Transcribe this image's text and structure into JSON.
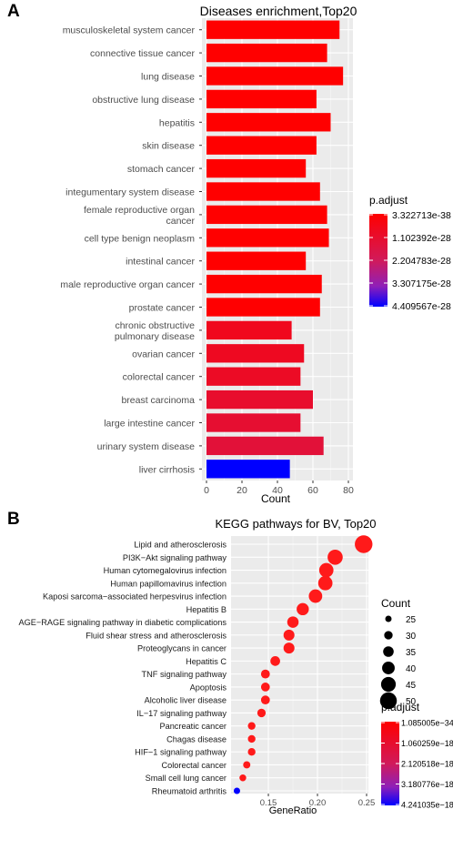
{
  "panels": {
    "a": {
      "letter": "A"
    },
    "b": {
      "letter": "B"
    }
  },
  "colors": {
    "high": "#ff0000",
    "low": "#0000ff",
    "panel": "#ebebeb",
    "grid": "#ffffff"
  },
  "chart_data": [
    {
      "type": "bar",
      "orientation": "horizontal",
      "title": "Diseases enrichment,Top20",
      "xlabel": "Count",
      "ylabel": "",
      "xlim": [
        0,
        80
      ],
      "xticks": [
        0,
        20,
        40,
        60,
        80
      ],
      "grid": true,
      "categories": [
        "musculoskeletal system cancer",
        "connective tissue cancer",
        "lung disease",
        "obstructive lung disease",
        "hepatitis",
        "skin disease",
        "stomach cancer",
        "integumentary system disease",
        "female reproductive organ cancer",
        "cell type benign neoplasm",
        "intestinal cancer",
        "male reproductive organ cancer",
        "prostate cancer",
        "chronic obstructive pulmonary disease",
        "ovarian cancer",
        "colorectal cancer",
        "breast carcinoma",
        "large intestine cancer",
        "urinary system disease",
        "liver cirrhosis"
      ],
      "category_lines": [
        [
          "musculoskeletal system cancer"
        ],
        [
          "connective tissue cancer"
        ],
        [
          "lung disease"
        ],
        [
          "obstructive lung disease"
        ],
        [
          "hepatitis"
        ],
        [
          "skin disease"
        ],
        [
          "stomach cancer"
        ],
        [
          "integumentary system disease"
        ],
        [
          "female reproductive organ",
          "cancer"
        ],
        [
          "cell type benign neoplasm"
        ],
        [
          "intestinal cancer"
        ],
        [
          "male reproductive organ cancer"
        ],
        [
          "prostate cancer"
        ],
        [
          "chronic obstructive",
          "pulmonary disease"
        ],
        [
          "ovarian cancer"
        ],
        [
          "colorectal cancer"
        ],
        [
          "breast carcinoma"
        ],
        [
          "large intestine cancer"
        ],
        [
          "urinary system disease"
        ],
        [
          "liver cirrhosis"
        ]
      ],
      "values": [
        75,
        68,
        77,
        62,
        70,
        62,
        56,
        64,
        68,
        69,
        56,
        65,
        64,
        48,
        55,
        53,
        60,
        53,
        66,
        47
      ],
      "p_adjust": [
        3.3e-38,
        3.3e-38,
        3.3e-38,
        1.2e-36,
        1.5e-36,
        2e-35,
        4e-34,
        8e-34,
        2e-33,
        5e-33,
        1.5e-31,
        5e-31,
        2e-30,
        7e-29,
        8e-29,
        9e-29,
        1.1e-28,
        1.2e-28,
        1.4e-28,
        4.4e-28
      ],
      "legend": {
        "title": "p.adjust",
        "labels": [
          "3.322713e-38",
          "1.102392e-28",
          "2.204783e-28",
          "3.307175e-28",
          "4.409567e-28"
        ],
        "placement": "right"
      }
    },
    {
      "type": "scatter",
      "title": "KEGG pathways for BV, Top20",
      "xlabel": "GeneRatio",
      "ylabel": "",
      "xlim": [
        0.112,
        0.25
      ],
      "xticks": [
        0.15,
        0.2,
        0.25
      ],
      "xtick_labels": [
        "0.15",
        "0.20",
        "0.25"
      ],
      "grid": true,
      "categories": [
        "Lipid and atherosclerosis",
        "PI3K−Akt signaling pathway",
        "Human cytomegalovirus infection",
        "Human papillomavirus infection",
        "Kaposi sarcoma−associated herpesvirus infection",
        "Hepatitis B",
        "AGE−RAGE signaling pathway in diabetic complications",
        "Fluid shear stress and atherosclerosis",
        "Proteoglycans in cancer",
        "Hepatitis C",
        "TNF signaling pathway",
        "Apoptosis",
        "Alcoholic liver disease",
        "IL−17 signaling pathway",
        "Pancreatic cancer",
        "Chagas disease",
        "HIF−1 signaling pathway",
        "Colorectal cancer",
        "Small cell lung cancer",
        "Rheumatoid arthritis"
      ],
      "x": [
        0.247,
        0.218,
        0.209,
        0.208,
        0.198,
        0.185,
        0.175,
        0.171,
        0.171,
        0.157,
        0.147,
        0.147,
        0.147,
        0.143,
        0.133,
        0.133,
        0.133,
        0.128,
        0.124,
        0.118
      ],
      "counts": [
        52,
        46,
        44,
        44,
        42,
        39,
        37,
        36,
        36,
        33,
        31,
        31,
        31,
        30,
        28,
        28,
        28,
        27,
        26,
        25
      ],
      "p_adjust": [
        1.1e-34,
        1.1e-34,
        1.1e-34,
        1.1e-34,
        1.2e-34,
        1.3e-34,
        1.5e-34,
        1.7e-34,
        2e-34,
        3e-34,
        5e-34,
        7e-34,
        1e-33,
        2e-33,
        5e-33,
        8e-33,
        1.2e-32,
        3e-32,
        5e-32,
        4.24e-18
      ],
      "size_legend": {
        "title": "Count",
        "values": [
          25,
          30,
          35,
          40,
          45,
          50
        ]
      },
      "color_legend": {
        "title": "p.adjust",
        "labels": [
          "1.085005e−34",
          "1.060259e−18",
          "2.120518e−18",
          "3.180776e−18",
          "4.241035e−18"
        ],
        "placement": "right"
      }
    }
  ]
}
